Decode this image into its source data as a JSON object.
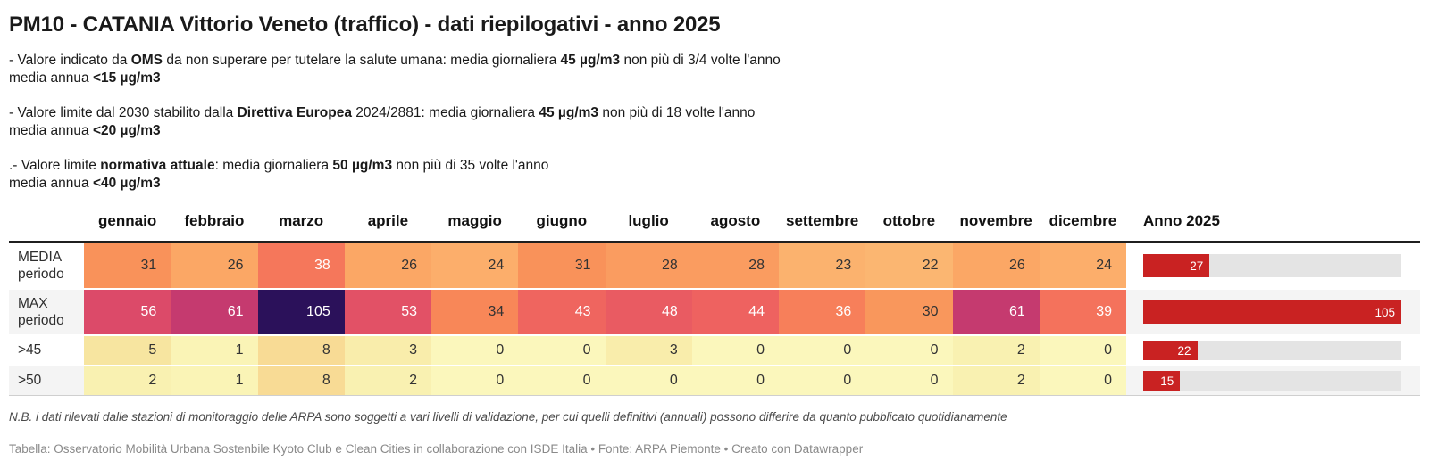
{
  "title": "PM10 - CATANIA Vittorio Veneto (traffico) - dati riepilogativi - anno 2025",
  "notes": [
    {
      "lines": [
        [
          {
            "t": "- Valore indicato da "
          },
          {
            "t": "OMS",
            "b": true
          },
          {
            "t": " da non superare per tutelare la salute umana: media giornaliera "
          },
          {
            "t": "45 µg/m3",
            "b": true
          },
          {
            "t": " non più di 3/4 volte l'anno"
          }
        ],
        [
          {
            "t": "media annua "
          },
          {
            "t": "<15 µg/m3",
            "b": true
          }
        ]
      ]
    },
    {
      "lines": [
        [
          {
            "t": "- Valore limite dal 2030 stabilito dalla "
          },
          {
            "t": "Direttiva Europea",
            "b": true
          },
          {
            "t": " 2024/2881: media giornaliera "
          },
          {
            "t": "45 µg/m3",
            "b": true
          },
          {
            "t": " non più di 18 volte l'anno"
          }
        ],
        [
          {
            "t": "media annua "
          },
          {
            "t": "<20 µg/m3",
            "b": true
          }
        ]
      ]
    },
    {
      "lines": [
        [
          {
            "t": ".- Valore limite "
          },
          {
            "t": "normativa attuale",
            "b": true
          },
          {
            "t": ": media giornaliera "
          },
          {
            "t": "50 µg/m3",
            "b": true
          },
          {
            "t": " non più di 35 volte l'anno"
          }
        ],
        [
          {
            "t": "media annua "
          },
          {
            "t": "<40 µg/m3",
            "b": true
          }
        ]
      ]
    }
  ],
  "chart_data": {
    "type": "table",
    "title": "PM10 - CATANIA Vittorio Veneto (traffico) - dati riepilogativi - anno 2025",
    "columns": [
      "gennaio",
      "febbraio",
      "marzo",
      "aprile",
      "maggio",
      "giugno",
      "luglio",
      "agosto",
      "settembre",
      "ottobre",
      "novembre",
      "dicembre"
    ],
    "year_column": "Anno 2025",
    "rows": [
      {
        "name": "MEDIA periodo",
        "values": [
          31,
          26,
          38,
          26,
          24,
          31,
          28,
          28,
          23,
          22,
          26,
          24
        ],
        "anno": 27
      },
      {
        "name": "MAX periodo",
        "values": [
          56,
          61,
          105,
          53,
          34,
          43,
          48,
          44,
          36,
          30,
          61,
          39
        ],
        "anno": 105
      },
      {
        "name": ">45",
        "values": [
          5,
          1,
          8,
          3,
          0,
          0,
          3,
          0,
          0,
          0,
          2,
          0
        ],
        "anno": 22
      },
      {
        "name": ">50",
        "values": [
          2,
          1,
          8,
          2,
          0,
          0,
          0,
          0,
          0,
          0,
          2,
          0
        ],
        "anno": 15
      }
    ],
    "bar_axis_max": 105,
    "legend_position": "none",
    "grid": false
  },
  "table_style": {
    "bar_color": "#c92222",
    "track_color": "#e4e4e4",
    "zebra_color": "#f4f4f4",
    "heat_colors": {
      "0": "#FBF7BC",
      "1": "#FAF4B6",
      "2": "#F9F1B1",
      "3": "#F9EDAB",
      "5": "#F7E5A0",
      "8": "#F8DB95",
      "22": "#FBB671",
      "23": "#FBB26E",
      "24": "#FCAE6B",
      "26": "#FBA765",
      "28": "#FA9C60",
      "30": "#F9975C",
      "31": "#F9925A",
      "34": "#F88758",
      "36": "#F77F5A",
      "38": "#F5775B",
      "39": "#F4725C",
      "43": "#EF655F",
      "44": "#EE6260",
      "48": "#E95B62",
      "53": "#E25166",
      "56": "#DC4A69",
      "61": "#C53A6F",
      "105": "#2B115A"
    }
  },
  "footer": {
    "note": "N.B. i dati rilevati dalle stazioni di monitoraggio delle ARPA sono soggetti a vari livelli di validazione, per cui quelli definitivi (annuali) possono differire da quanto pubblicato quotidianamente",
    "attribution": "Tabella: Osservatorio Mobilità Urbana Sostenbile Kyoto Club e Clean Cities in collaborazione con ISDE Italia • Fonte: ARPA Piemonte • Creato con Datawrapper"
  }
}
